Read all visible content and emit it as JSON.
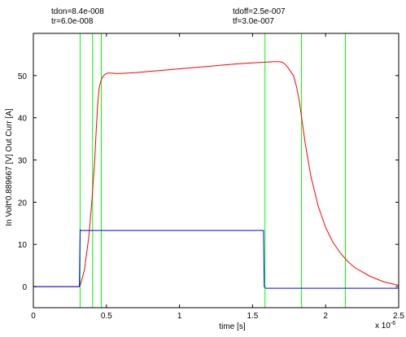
{
  "annotations": {
    "tdon": "tdon=8.4e-008",
    "tr": "tr=6.0e-008",
    "tdoff": "tdoff=2.5e-007",
    "tf": "tf=3.0e-007"
  },
  "chart_data": {
    "type": "line",
    "xlabel": "time [s]",
    "ylabel": "In Volt*0.889667 [V] Out Curr [A]",
    "x_exponent_label": "x 10",
    "x_exponent_power": "-6",
    "xlim": [
      0,
      2.5
    ],
    "ylim": [
      -5,
      60
    ],
    "xticks": [
      0,
      0.5,
      1,
      1.5,
      2,
      2.5
    ],
    "xtick_labels": [
      "0",
      "0.5",
      "1",
      "1.5",
      "2",
      "2.5"
    ],
    "yticks": [
      0,
      10,
      20,
      30,
      40,
      50
    ],
    "ytick_labels": [
      "0",
      "10",
      "20",
      "30",
      "40",
      "50"
    ],
    "grid": false,
    "colors": {
      "output_current": "#ff0000",
      "input_voltage": "#0000ff",
      "markers": "#00ff00",
      "axes": "#000000"
    },
    "series": [
      {
        "color": "#ff0000",
        "x": [
          0,
          0.31,
          0.32,
          0.35,
          0.38,
          0.4,
          0.42,
          0.43,
          0.44,
          0.45,
          0.46,
          0.47,
          0.49,
          0.51,
          0.53,
          0.56,
          0.6,
          0.7,
          0.8,
          0.9,
          1.0,
          1.1,
          1.2,
          1.3,
          1.4,
          1.5,
          1.55,
          1.6,
          1.65,
          1.68,
          1.7,
          1.72,
          1.74,
          1.76,
          1.78,
          1.8,
          1.82,
          1.84,
          1.86,
          1.88,
          1.9,
          1.95,
          2.0,
          2.05,
          2.1,
          2.15,
          2.2,
          2.3,
          2.4,
          2.5
        ],
        "y": [
          0,
          0,
          0.2,
          4,
          12,
          20,
          30,
          37,
          43,
          47,
          48.5,
          49.5,
          50.3,
          50.6,
          50.6,
          50.5,
          50.5,
          50.7,
          51,
          51.3,
          51.6,
          51.9,
          52.2,
          52.5,
          52.8,
          53.0,
          53.1,
          53.2,
          53.3,
          53.3,
          53.2,
          52.8,
          52,
          51,
          50,
          47.5,
          44,
          39,
          34,
          30,
          26,
          19,
          14,
          10.5,
          8,
          6,
          4.5,
          2.5,
          1.1,
          0.3
        ]
      },
      {
        "color": "#0000ff",
        "x": [
          0,
          0.315,
          0.32,
          0.33,
          0.36,
          0.8,
          1.3,
          1.575,
          1.58,
          1.59,
          2.5
        ],
        "y": [
          0,
          0,
          13.4,
          13.3,
          13.3,
          13.3,
          13.3,
          13.3,
          0,
          -0.4,
          -0.4
        ]
      }
    ],
    "vertical_markers_x": [
      0.32,
      0.405,
      0.465,
      1.585,
      1.835,
      2.135
    ]
  }
}
